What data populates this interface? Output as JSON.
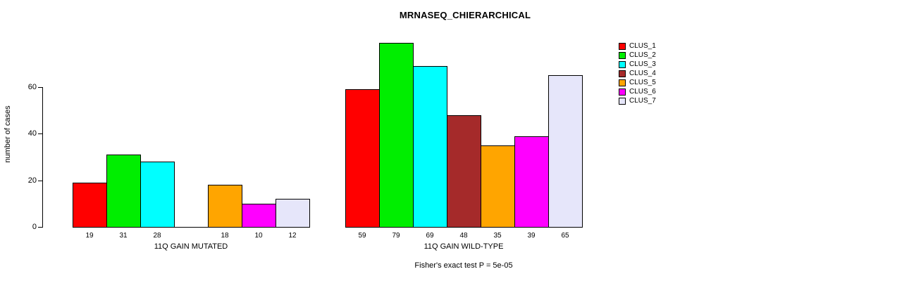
{
  "title": "MRNASEQ_CHIERARCHICAL",
  "ylabel": "number of cases",
  "footer": "Fisher's exact test P = 5e-05",
  "chart_data": {
    "type": "bar",
    "title": "MRNASEQ_CHIERARCHICAL",
    "xlabel": "",
    "ylabel": "number of cases",
    "yticks": [
      0,
      20,
      40,
      60
    ],
    "ylim": [
      0,
      80
    ],
    "grid": false,
    "legend_position": "right",
    "annotation": "Fisher's exact test P = 5e-05",
    "series": [
      {
        "name": "CLUS_1",
        "color": "#FF0000"
      },
      {
        "name": "CLUS_2",
        "color": "#00EE00"
      },
      {
        "name": "CLUS_3",
        "color": "#00FFFF"
      },
      {
        "name": "CLUS_4",
        "color": "#A52A2A"
      },
      {
        "name": "CLUS_5",
        "color": "#FFA500"
      },
      {
        "name": "CLUS_6",
        "color": "#FF00FF"
      },
      {
        "name": "CLUS_7",
        "color": "#E6E6FA"
      }
    ],
    "groups": [
      {
        "label": "11Q GAIN MUTATED",
        "values": [
          19,
          31,
          28,
          0,
          18,
          10,
          12
        ]
      },
      {
        "label": "11Q GAIN WILD-TYPE",
        "values": [
          59,
          79,
          69,
          48,
          35,
          39,
          65
        ]
      }
    ]
  }
}
